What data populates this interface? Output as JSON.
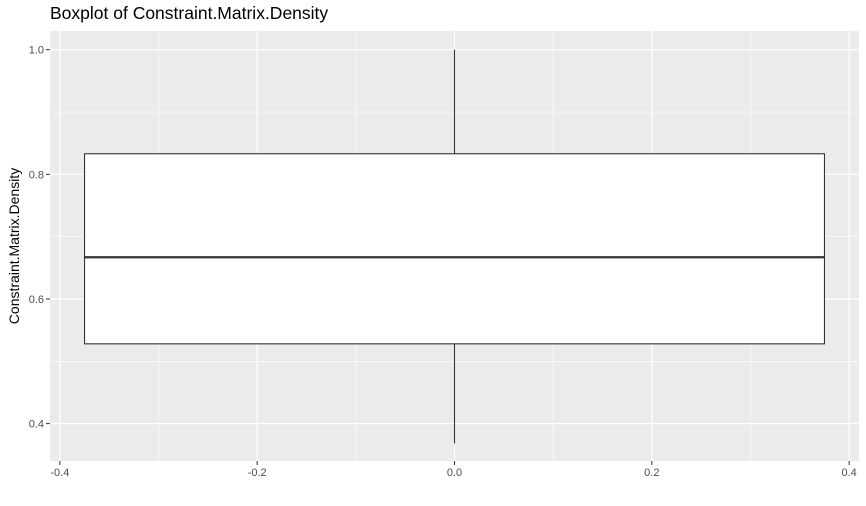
{
  "chart_data": {
    "type": "boxplot",
    "title": "Boxplot of Constraint.Matrix.Density",
    "xlabel": "",
    "ylabel": "Constraint.Matrix.Density",
    "xlim": [
      -0.41,
      0.41
    ],
    "ylim": [
      0.34,
      1.03
    ],
    "x_ticks": [
      -0.4,
      -0.2,
      0.0,
      0.2,
      0.4
    ],
    "x_tick_labels": [
      "-0.4",
      "-0.2",
      "0.0",
      "0.2",
      "0.4"
    ],
    "y_ticks": [
      0.4,
      0.6,
      0.8,
      1.0
    ],
    "y_tick_labels": [
      "0.4",
      "0.6",
      "0.8",
      "1.0"
    ],
    "grid": true,
    "box": {
      "x_center": 0.0,
      "x_min": -0.375,
      "x_max": 0.375,
      "whisker_low": 0.368,
      "q1": 0.528,
      "median": 0.667,
      "q3": 0.833,
      "whisker_high": 1.0
    },
    "colors": {
      "panel": "#ebebeb",
      "grid": "#ffffff",
      "box_fill": "#ffffff",
      "box_line": "#333333"
    }
  }
}
